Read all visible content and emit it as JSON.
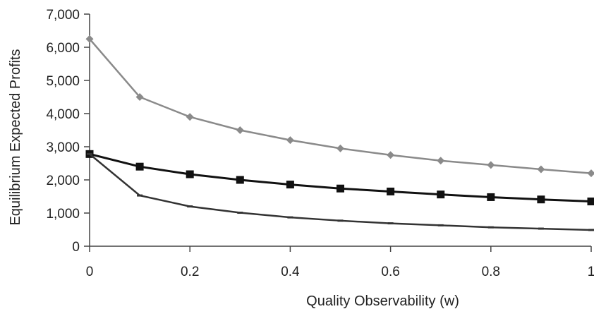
{
  "chart_data": {
    "type": "line",
    "title": "",
    "xlabel": "Quality Observability (w)",
    "ylabel": "Equilibrium Expected Profits",
    "xlim": [
      0,
      1
    ],
    "ylim": [
      0,
      7000
    ],
    "x_ticks": [
      0,
      0.2,
      0.4,
      0.6,
      0.8,
      1
    ],
    "x_tick_labels": [
      "0",
      "0.2",
      "0.4",
      "0.6",
      "0.8",
      "1"
    ],
    "y_ticks": [
      0,
      1000,
      2000,
      3000,
      4000,
      5000,
      6000,
      7000
    ],
    "y_tick_labels": [
      "0",
      "1,000",
      "2,000",
      "3,000",
      "4,000",
      "5,000",
      "6,000",
      "7,000"
    ],
    "grid": false,
    "legend": "none",
    "x": [
      0,
      0.1,
      0.2,
      0.3,
      0.4,
      0.5,
      0.6,
      0.7,
      0.8,
      0.9,
      1.0
    ],
    "series": [
      {
        "values": [
          6250,
          4500,
          3900,
          3500,
          3200,
          2950,
          2750,
          2580,
          2450,
          2320,
          2200
        ],
        "color": "#8a8a8a",
        "marker": "diamond"
      },
      {
        "values": [
          2780,
          2400,
          2170,
          2000,
          1860,
          1740,
          1650,
          1560,
          1480,
          1410,
          1350
        ],
        "color": "#111111",
        "marker": "square"
      },
      {
        "values": [
          2780,
          1530,
          1200,
          1010,
          870,
          770,
          690,
          630,
          570,
          530,
          490
        ],
        "color": "#333333",
        "marker": "dash"
      }
    ]
  }
}
